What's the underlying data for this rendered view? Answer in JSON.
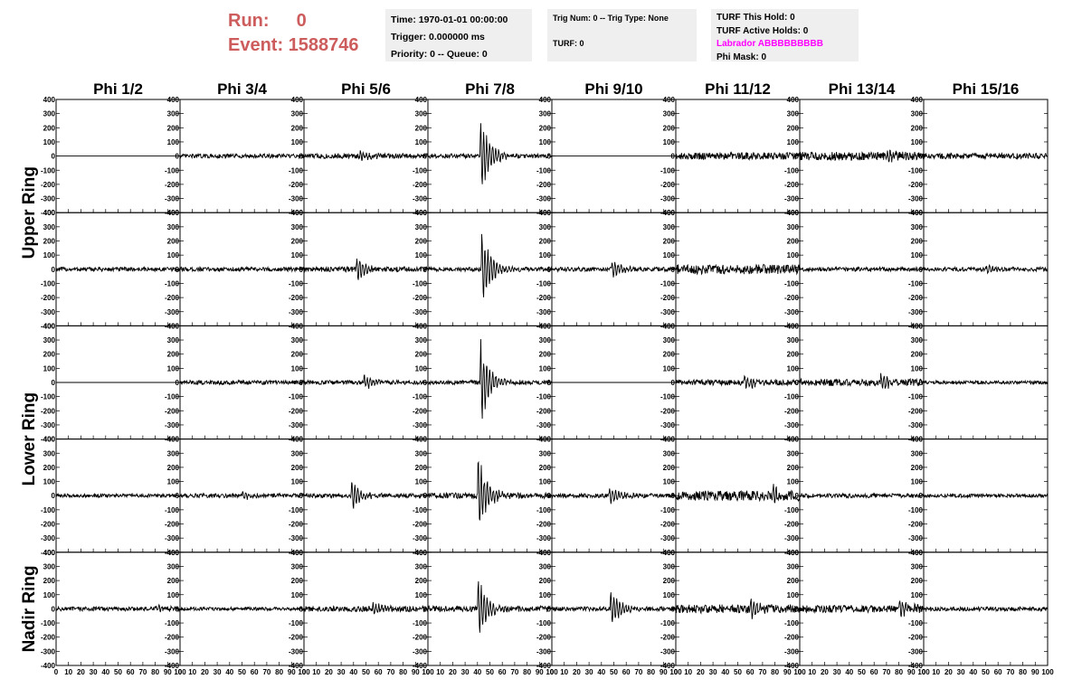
{
  "header": {
    "run_label": "Run:",
    "run_value": "0",
    "event_label": "Event:",
    "event_value": "1588746"
  },
  "time_box": {
    "time": "Time: 1970-01-01 00:00:00",
    "trigger": "Trigger: 0.000000 ms",
    "priority": "Priority: 0 -- Queue: 0"
  },
  "trig_box": {
    "trig": "Trig Num: 0 -- Trig Type: None",
    "turf": "TURF: 0"
  },
  "turf_box": {
    "this_hold": "TURF This Hold: 0",
    "active_holds": "TURF Active Holds: 0",
    "labrador": "Labrador ABBBBBBBBB",
    "phi_mask": "Phi Mask: 0"
  },
  "colors": {
    "run_text": "#cd5c5c",
    "labrador_text": "#ff00ff",
    "info_box_bg": "#efefef",
    "trace": "#000000"
  },
  "chart_data": {
    "type": "line",
    "column_titles": [
      "Phi 1/2",
      "Phi 3/4",
      "Phi 5/6",
      "Phi 7/8",
      "Phi 9/10",
      "Phi 11/12",
      "Phi 13/14",
      "Phi 15/16"
    ],
    "ring_labels": [
      "Upper Ring",
      "Lower Ring",
      "Nadir Ring"
    ],
    "xlim": [
      0,
      100
    ],
    "ylim": [
      -400,
      400
    ],
    "x_ticks": [
      0,
      10,
      20,
      30,
      40,
      50,
      60,
      70,
      80,
      90,
      100
    ],
    "y_ticks": [
      -400,
      -300,
      -200,
      -100,
      0,
      100,
      200,
      300,
      400
    ],
    "grid": false,
    "panel_rows": 5,
    "panel_cols": 8,
    "waveforms": [
      [
        {
          "noise": 0,
          "burst_at": 0,
          "burst_amp": 0
        },
        {
          "noise": 15,
          "burst_at": 0,
          "burst_amp": 0
        },
        {
          "noise": 18,
          "burst_at": 45,
          "burst_amp": 40
        },
        {
          "noise": 15,
          "burst_at": 42,
          "burst_amp": 330
        },
        {
          "noise": 0,
          "burst_at": 0,
          "burst_amp": 0
        },
        {
          "noise": 25,
          "burst_at": 0,
          "burst_amp": 0
        },
        {
          "noise": 30,
          "burst_at": 70,
          "burst_amp": 50
        },
        {
          "noise": 20,
          "burst_at": 0,
          "burst_amp": 0
        }
      ],
      [
        {
          "noise": 15,
          "burst_at": 0,
          "burst_amp": 0
        },
        {
          "noise": 15,
          "burst_at": 0,
          "burst_amp": 0
        },
        {
          "noise": 18,
          "burst_at": 42,
          "burst_amp": 110
        },
        {
          "noise": 15,
          "burst_at": 43,
          "burst_amp": 340
        },
        {
          "noise": 15,
          "burst_at": 48,
          "burst_amp": 90
        },
        {
          "noise": 35,
          "burst_at": 0,
          "burst_amp": 0
        },
        {
          "noise": 15,
          "burst_at": 0,
          "burst_amp": 0
        },
        {
          "noise": 15,
          "burst_at": 50,
          "burst_amp": 40
        }
      ],
      [
        {
          "noise": 0,
          "burst_at": 0,
          "burst_amp": 0
        },
        {
          "noise": 15,
          "burst_at": 0,
          "burst_amp": 0
        },
        {
          "noise": 15,
          "burst_at": 48,
          "burst_amp": 60
        },
        {
          "noise": 15,
          "burst_at": 42,
          "burst_amp": 340
        },
        {
          "noise": 0,
          "burst_at": 0,
          "burst_amp": 0
        },
        {
          "noise": 20,
          "burst_at": 55,
          "burst_amp": 80
        },
        {
          "noise": 25,
          "burst_at": 65,
          "burst_amp": 90
        },
        {
          "noise": 12,
          "burst_at": 0,
          "burst_amp": 0
        }
      ],
      [
        {
          "noise": 12,
          "burst_at": 0,
          "burst_amp": 0
        },
        {
          "noise": 15,
          "burst_at": 50,
          "burst_amp": 30
        },
        {
          "noise": 15,
          "burst_at": 38,
          "burst_amp": 130
        },
        {
          "noise": 20,
          "burst_at": 40,
          "burst_amp": 330
        },
        {
          "noise": 15,
          "burst_at": 46,
          "burst_amp": 90
        },
        {
          "noise": 35,
          "burst_at": 78,
          "burst_amp": 80
        },
        {
          "noise": 15,
          "burst_at": 0,
          "burst_amp": 0
        },
        {
          "noise": 12,
          "burst_at": 0,
          "burst_amp": 0
        }
      ],
      [
        {
          "noise": 15,
          "burst_at": 80,
          "burst_amp": 30
        },
        {
          "noise": 12,
          "burst_at": 0,
          "burst_amp": 0
        },
        {
          "noise": 20,
          "burst_at": 55,
          "burst_amp": 50
        },
        {
          "noise": 20,
          "burst_at": 40,
          "burst_amp": 270
        },
        {
          "noise": 15,
          "burst_at": 47,
          "burst_amp": 180
        },
        {
          "noise": 30,
          "burst_at": 60,
          "burst_amp": 100
        },
        {
          "noise": 25,
          "burst_at": 80,
          "burst_amp": 90
        },
        {
          "noise": 15,
          "burst_at": 0,
          "burst_amp": 0
        }
      ]
    ]
  }
}
